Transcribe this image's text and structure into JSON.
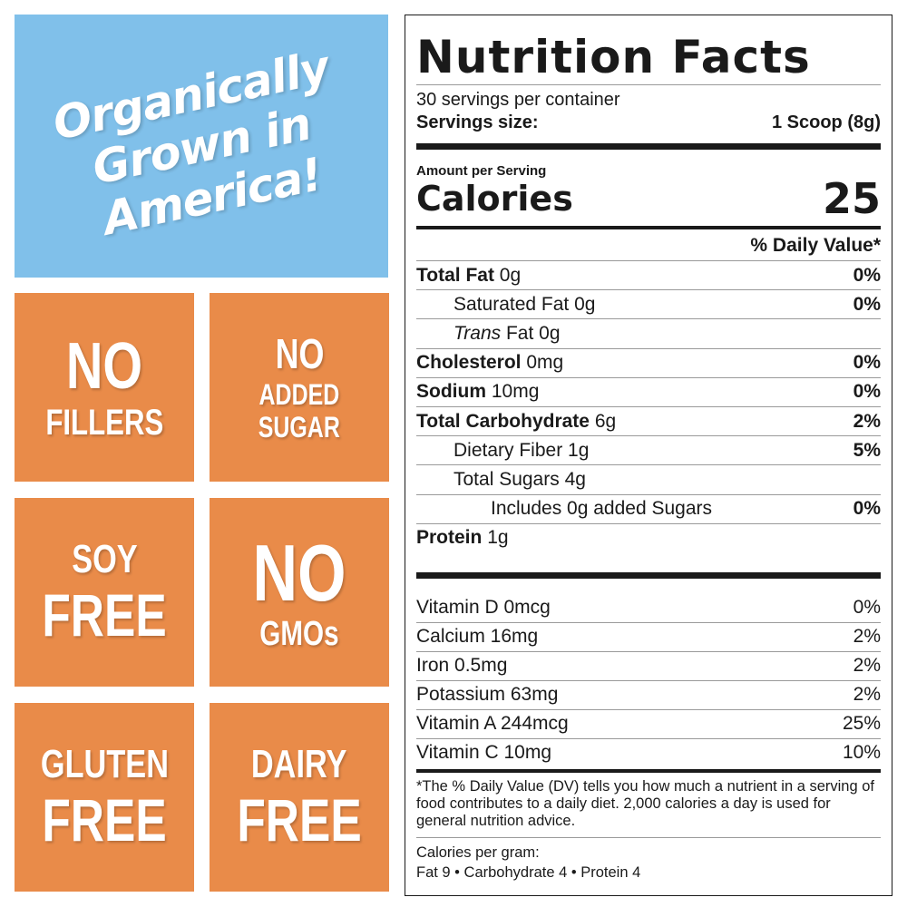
{
  "banner": {
    "lines": [
      "Organically",
      "Grown in",
      "America!"
    ]
  },
  "badges": [
    {
      "lines": [
        "NO",
        "FILLERS"
      ]
    },
    {
      "lines": [
        "NO",
        "ADDED",
        "SUGAR"
      ]
    },
    {
      "lines": [
        "SOY",
        "FREE"
      ]
    },
    {
      "lines": [
        "NO",
        "GMOs"
      ]
    },
    {
      "lines": [
        "GLUTEN",
        "FREE"
      ]
    },
    {
      "lines": [
        "DAIRY",
        "FREE"
      ]
    }
  ],
  "colors": {
    "banner_blue": "#80c0ea",
    "badge_orange": "#e98b49",
    "text": "#1a1a1a"
  },
  "label": {
    "title": "Nutrition Facts",
    "servings_per_container": "30 servings per container",
    "serving_size_label": "Servings size:",
    "serving_size_value": "1 Scoop (8g)",
    "amount_per_serving": "Amount per Serving",
    "calories_label": "Calories",
    "calories_value": "25",
    "daily_value_header": "% Daily Value*",
    "nutrients": [
      {
        "name": "Total Fat",
        "amount": "0g",
        "dv": "0%"
      },
      {
        "name": "Saturated Fat",
        "amount": "0g",
        "dv": "0%"
      },
      {
        "name_italic": "Trans",
        "name": "Fat",
        "amount": "0g",
        "dv": ""
      },
      {
        "name": "Cholesterol",
        "amount": "0mg",
        "dv": "0%"
      },
      {
        "name": "Sodium",
        "amount": "10mg",
        "dv": "0%"
      },
      {
        "name": "Total Carbohydrate",
        "amount": "6g",
        "dv": "2%"
      },
      {
        "name": "Dietary Fiber",
        "amount": "1g",
        "dv": "5%"
      },
      {
        "name": "Total Sugars",
        "amount": "4g",
        "dv": ""
      },
      {
        "name": "Includes 0g added Sugars",
        "amount": "",
        "dv": "0%"
      },
      {
        "name": "Protein",
        "amount": "1g",
        "dv": ""
      }
    ],
    "vitamins": [
      {
        "name": "Vitamin D 0mcg",
        "dv": "0%"
      },
      {
        "name": "Calcium 16mg",
        "dv": "2%"
      },
      {
        "name": "Iron 0.5mg",
        "dv": "2%"
      },
      {
        "name": "Potassium 63mg",
        "dv": "2%"
      },
      {
        "name": "Vitamin A 244mcg",
        "dv": "25%"
      },
      {
        "name": "Vitamin C 10mg",
        "dv": "10%"
      }
    ],
    "footnote": "*The % Daily Value (DV) tells you how much a nutrient in a serving of food contributes to a daily diet. 2,000 calories a day is used for general nutrition advice.",
    "calories_per_gram_title": "Calories per gram:",
    "calories_per_gram_values": "Fat 9 • Carbohydrate 4 • Protein 4"
  }
}
